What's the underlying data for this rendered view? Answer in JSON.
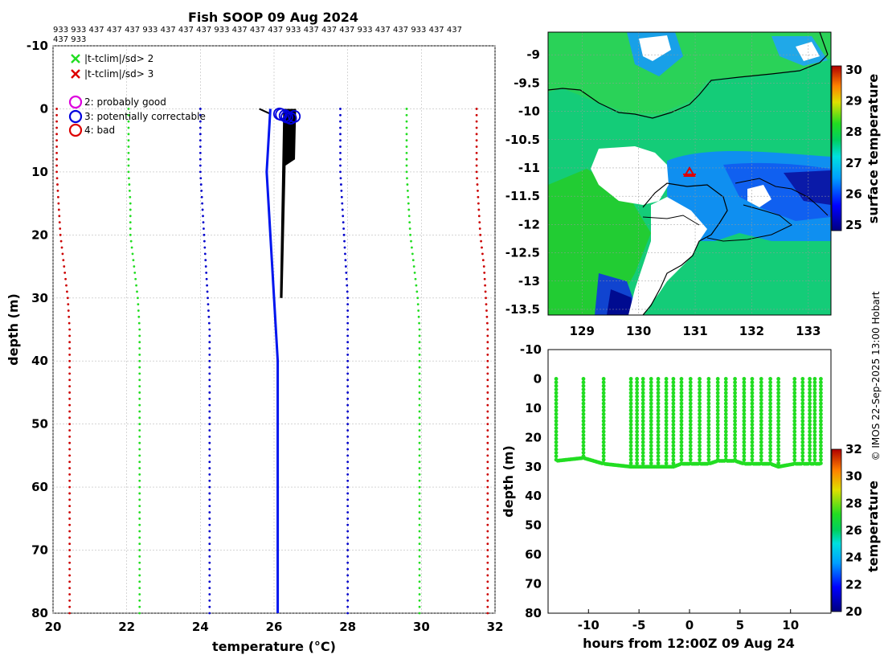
{
  "title": "Fish SOOP 09 Aug 2024",
  "id_line1": "933 933 437 437 437 933 437 437 437 933 437 437 437 933 437 437 437 933 437 437 933 437 437",
  "id_line2": "437 933",
  "credit": "© IMOS 22-Sep-2025 13:00 Hobart",
  "colors": {
    "red": "#cc0000",
    "green": "#22dd22",
    "blue": "#0000cc",
    "profile": "#0015ee"
  },
  "chart_data": [
    {
      "type": "line",
      "name": "temperature-profile",
      "xlabel": "temperature (°C)",
      "ylabel": "depth (m)",
      "xlim": [
        20,
        32
      ],
      "ylim": [
        -10,
        80
      ],
      "xticks": [
        "20",
        "22",
        "24",
        "26",
        "28",
        "30",
        "32"
      ],
      "yticks": [
        "-10",
        "0",
        "10",
        "20",
        "30",
        "40",
        "50",
        "60",
        "70",
        "80"
      ],
      "legend": [
        {
          "label": "|t-tclim|/sd> 2",
          "marker": "x",
          "color": "#22dd22"
        },
        {
          "label": "|t-tclim|/sd> 3",
          "marker": "x",
          "color": "#dd0000"
        },
        {
          "label": "2: probably good",
          "marker": "o",
          "color": "#dd00dd"
        },
        {
          "label": "3: potentially correctable",
          "marker": "o",
          "color": "#0000dd"
        },
        {
          "label": "4: bad",
          "marker": "o",
          "color": "#dd0000"
        }
      ],
      "climatology_depths": [
        0,
        5,
        10,
        15,
        20,
        25,
        30,
        35,
        40,
        50,
        60,
        70,
        80
      ],
      "series": [
        {
          "name": "clim-3sd-lower",
          "color": "#cc0000",
          "values": [
            20.1,
            20.1,
            20.1,
            20.15,
            20.2,
            20.3,
            20.4,
            20.45,
            20.45,
            20.45,
            20.45,
            20.45,
            20.45
          ]
        },
        {
          "name": "clim-2sd-lower",
          "color": "#22dd22",
          "values": [
            22.05,
            22.05,
            22.05,
            22.1,
            22.1,
            22.2,
            22.3,
            22.35,
            22.35,
            22.35,
            22.35,
            22.35,
            22.35
          ]
        },
        {
          "name": "clim-2sd-lower-b",
          "color": "#0000cc",
          "values": [
            24.0,
            24.0,
            24.0,
            24.05,
            24.1,
            24.15,
            24.2,
            24.25,
            24.25,
            24.25,
            24.25,
            24.25,
            24.25
          ]
        },
        {
          "name": "clim-2sd-upper-b",
          "color": "#0000cc",
          "values": [
            27.8,
            27.8,
            27.8,
            27.85,
            27.9,
            27.95,
            28.0,
            28.0,
            28.0,
            28.0,
            28.0,
            28.0,
            28.0
          ]
        },
        {
          "name": "clim-2sd-upper",
          "color": "#22dd22",
          "values": [
            29.6,
            29.6,
            29.6,
            29.65,
            29.7,
            29.8,
            29.9,
            29.95,
            29.95,
            29.95,
            29.95,
            29.95,
            29.95
          ]
        },
        {
          "name": "clim-3sd-upper",
          "color": "#cc0000",
          "values": [
            31.5,
            31.5,
            31.5,
            31.55,
            31.6,
            31.7,
            31.75,
            31.8,
            31.8,
            31.8,
            31.8,
            31.8,
            31.8
          ]
        }
      ],
      "profile": {
        "depths": [
          0,
          5,
          10,
          15,
          20,
          25,
          30,
          35,
          40,
          50,
          60,
          70,
          80
        ],
        "values": [
          25.9,
          25.85,
          25.8,
          25.85,
          25.9,
          25.95,
          26.0,
          26.05,
          26.1,
          26.1,
          26.1,
          26.1,
          26.1
        ]
      },
      "flag_markers": {
        "depths": [
          0.8,
          1.1,
          1.5,
          1.2,
          0.9,
          1.3
        ],
        "values": [
          26.15,
          26.3,
          26.45,
          26.55,
          26.2,
          26.35
        ]
      }
    },
    {
      "type": "heatmap",
      "name": "sst-map",
      "xticks": [
        "129",
        "130",
        "131",
        "132",
        "133"
      ],
      "yticks": [
        "-9",
        "-9.5",
        "-10",
        "-10.5",
        "-11",
        "-11.5",
        "-12",
        "-12.5",
        "-13",
        "-13.5"
      ],
      "xlim": [
        128.4,
        133.4
      ],
      "ylim": [
        -13.6,
        -8.6
      ],
      "colorbar": {
        "label": "surface temperature",
        "range": [
          25,
          30
        ],
        "ticks": [
          "25",
          "26",
          "27",
          "28",
          "29",
          "30"
        ]
      },
      "ship_position": {
        "lon": 130.85,
        "lat": -11.05
      }
    },
    {
      "type": "scatter",
      "name": "depth-time",
      "xlabel": "hours from 12:00Z 09 Aug 24",
      "ylabel": "depth (m)",
      "xlim": [
        -14,
        14
      ],
      "ylim": [
        -10,
        80
      ],
      "xticks": [
        "-10",
        "-5",
        "0",
        "5",
        "10"
      ],
      "yticks": [
        "-10",
        "0",
        "10",
        "20",
        "30",
        "40",
        "50",
        "60",
        "70",
        "80"
      ],
      "colorbar": {
        "label": "temperature",
        "range": [
          20,
          32
        ],
        "ticks": [
          "20",
          "22",
          "24",
          "26",
          "28",
          "30",
          "32"
        ]
      },
      "casts_hours": [
        -13.2,
        -10.5,
        -8.5,
        -5.8,
        -5.2,
        -4.6,
        -3.8,
        -3.1,
        -2.3,
        -1.6,
        -0.8,
        0.1,
        1.0,
        1.9,
        2.8,
        3.6,
        4.5,
        5.4,
        6.2,
        7.1,
        8.0,
        8.8,
        10.4,
        11.2,
        11.9,
        12.4,
        13.0
      ],
      "bottom_depth": [
        28,
        27,
        29,
        30,
        30,
        30,
        30,
        30,
        30,
        30,
        29,
        29,
        29,
        29,
        28,
        28,
        28,
        29,
        29,
        29,
        29,
        30,
        29,
        29,
        29,
        29,
        29
      ]
    }
  ]
}
